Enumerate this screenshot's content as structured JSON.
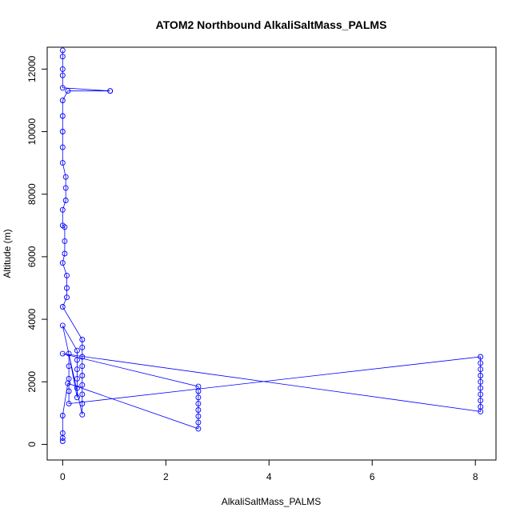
{
  "chart_data": {
    "type": "scatter",
    "title": "ATOM2 Northbound AlkaliSaltMass_PALMS",
    "xlabel": "AlkaliSaltMass_PALMS",
    "ylabel": "Altitude (m)",
    "xlim": [
      -0.3,
      8.4
    ],
    "ylim": [
      -500,
      12700
    ],
    "x_ticks": [
      0,
      2,
      4,
      6,
      8
    ],
    "y_ticks": [
      0,
      2000,
      4000,
      6000,
      8000,
      10000,
      12000
    ],
    "grid": false,
    "series": [
      {
        "color": "#0000ff",
        "marker": "open-circle",
        "line": true,
        "points": [
          [
            0.0,
            12600
          ],
          [
            0.0,
            12400
          ],
          [
            0.0,
            12000
          ],
          [
            0.0,
            11800
          ],
          [
            0.0,
            11400
          ],
          [
            0.92,
            11300
          ],
          [
            0.92,
            11300
          ],
          [
            0.1,
            11300
          ],
          [
            0.0,
            11000
          ],
          [
            0.0,
            10500
          ],
          [
            0.0,
            10000
          ],
          [
            0.0,
            9500
          ],
          [
            0.0,
            9000
          ],
          [
            0.06,
            8550
          ],
          [
            0.06,
            8200
          ],
          [
            0.06,
            7800
          ],
          [
            0.0,
            7500
          ],
          [
            0.0,
            7000
          ],
          [
            0.04,
            6950
          ],
          [
            0.04,
            6500
          ],
          [
            0.04,
            6100
          ],
          [
            0.0,
            5800
          ],
          [
            0.08,
            5400
          ],
          [
            0.08,
            5000
          ],
          [
            0.08,
            4700
          ],
          [
            0.0,
            4400
          ],
          [
            0.38,
            3350
          ],
          [
            0.38,
            3100
          ],
          [
            0.38,
            2800
          ],
          [
            0.38,
            2500
          ],
          [
            0.38,
            2200
          ],
          [
            0.38,
            1900
          ],
          [
            0.38,
            1600
          ],
          [
            0.38,
            1300
          ],
          [
            0.38,
            950
          ],
          [
            0.0,
            3800
          ],
          [
            0.28,
            3000
          ],
          [
            0.28,
            2700
          ],
          [
            0.28,
            2400
          ],
          [
            0.28,
            2100
          ],
          [
            0.28,
            1800
          ],
          [
            0.28,
            1500
          ],
          [
            0.12,
            2900
          ],
          [
            0.12,
            2500
          ],
          [
            0.12,
            2100
          ],
          [
            0.12,
            1700
          ],
          [
            0.12,
            1300
          ],
          [
            8.1,
            2800
          ],
          [
            8.1,
            2600
          ],
          [
            8.1,
            2400
          ],
          [
            8.1,
            2200
          ],
          [
            8.1,
            2000
          ],
          [
            8.1,
            1800
          ],
          [
            8.1,
            1600
          ],
          [
            8.1,
            1400
          ],
          [
            8.1,
            1200
          ],
          [
            8.1,
            1050
          ],
          [
            0.0,
            2900
          ],
          [
            2.63,
            1850
          ],
          [
            2.63,
            1700
          ],
          [
            2.63,
            1500
          ],
          [
            2.63,
            1300
          ],
          [
            2.63,
            1100
          ],
          [
            2.63,
            900
          ],
          [
            2.63,
            700
          ],
          [
            2.63,
            500
          ],
          [
            0.1,
            1950
          ],
          [
            0.0,
            920
          ],
          [
            0.0,
            360
          ],
          [
            0.0,
            200
          ],
          [
            0.0,
            100
          ]
        ]
      }
    ]
  }
}
